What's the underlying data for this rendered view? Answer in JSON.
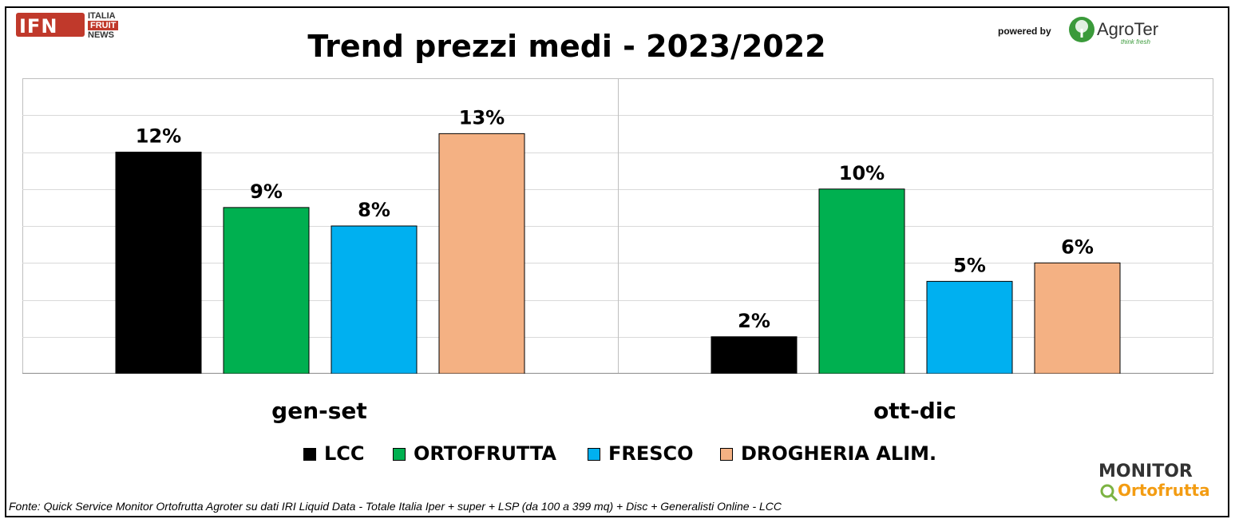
{
  "logos": {
    "ifn": {
      "main": "IFN",
      "line1": "ITALIA",
      "line2": "FRUIT",
      "line3": "NEWS"
    },
    "powered_by": "powered by",
    "agroter": {
      "name": "AgroTer",
      "tagline": "think fresh"
    },
    "monitor": {
      "top": "MONITOR",
      "bottom": "Ortofrutta"
    }
  },
  "source_note": "Fonte: Quick Service Monitor Ortofrutta Agroter su dati IRI Liquid Data - Totale Italia Iper + super + LSP (da 100 a 399 mq) + Disc + Generalisti Online - LCC",
  "chart_data": {
    "type": "bar",
    "title": "Trend prezzi medi - 2023/2022",
    "xlabel": "",
    "ylabel": "",
    "categories": [
      "gen-set",
      "ott-dic"
    ],
    "series": [
      {
        "name": "LCC",
        "color": "#000000",
        "values": [
          12,
          2
        ],
        "labels": [
          "12%",
          "2%"
        ]
      },
      {
        "name": "ORTOFRUTTA",
        "color": "#00b050",
        "values": [
          9,
          10
        ],
        "labels": [
          "9%",
          "10%"
        ]
      },
      {
        "name": "FRESCO",
        "color": "#00b0f0",
        "values": [
          8,
          5
        ],
        "labels": [
          "8%",
          "5%"
        ]
      },
      {
        "name": "DROGHERIA ALIM.",
        "color": "#f4b183",
        "values": [
          13,
          6
        ],
        "labels": [
          "13%",
          "6%"
        ]
      }
    ],
    "ylim": [
      0,
      16
    ],
    "grid": true,
    "legend": "bottom"
  }
}
